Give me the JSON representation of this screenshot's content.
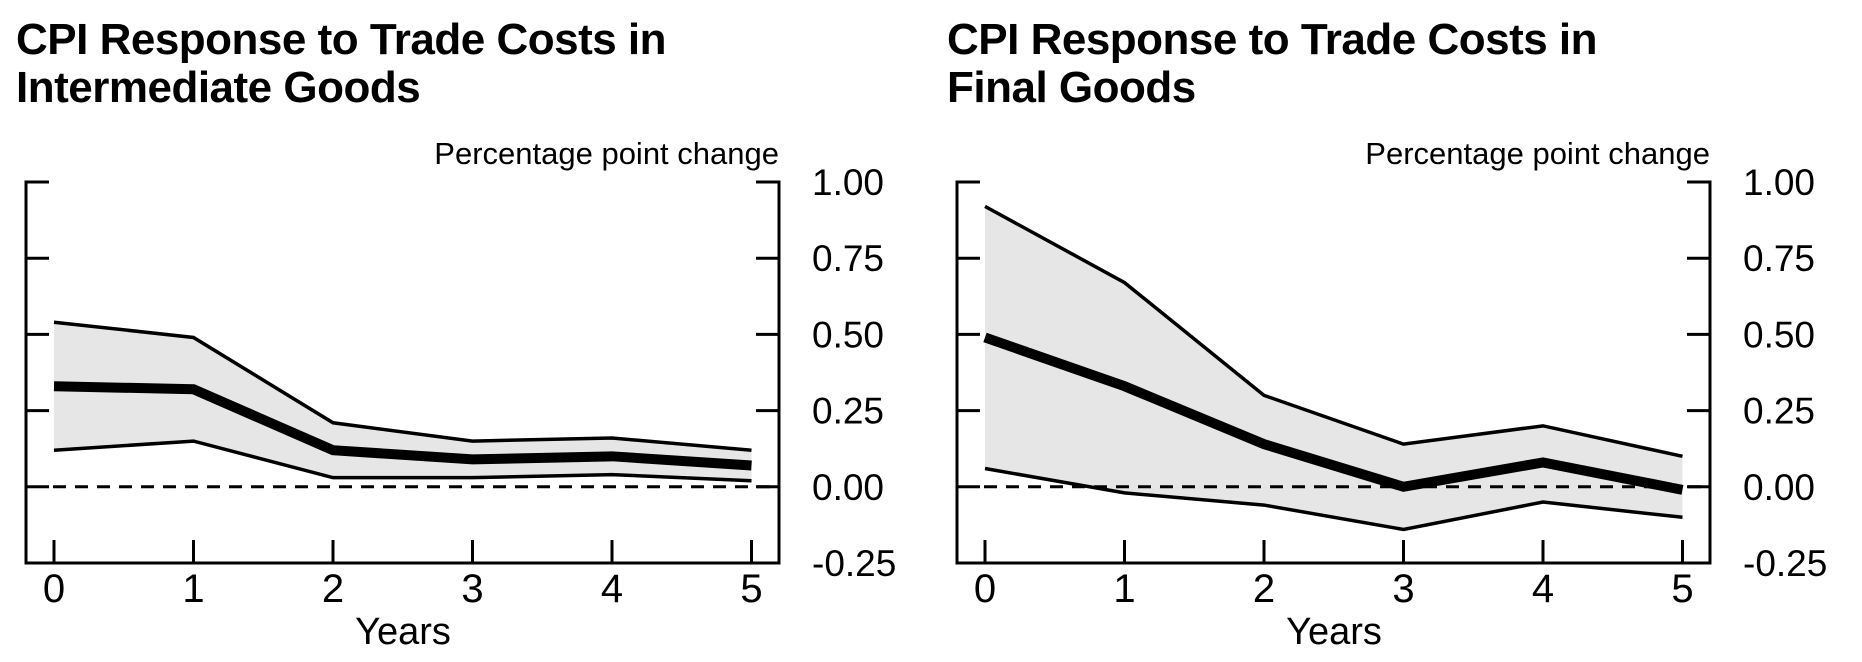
{
  "page": {
    "background": "#ffffff",
    "text_color": "#000000"
  },
  "chart_data": [
    {
      "type": "line",
      "id": "intermediate-goods",
      "title": "CPI Response to Trade Costs in\nIntermediate Goods",
      "unit_label": "Percentage point change",
      "xlabel": "Years",
      "x": [
        0,
        1,
        2,
        3,
        4,
        5
      ],
      "xtick_labels": [
        "0",
        "1",
        "2",
        "3",
        "4",
        "5"
      ],
      "series": [
        {
          "name": "median response",
          "role": "center",
          "values": [
            0.33,
            0.32,
            0.12,
            0.09,
            0.1,
            0.07
          ]
        },
        {
          "name": "upper confidence band",
          "role": "upper",
          "values": [
            0.54,
            0.49,
            0.21,
            0.15,
            0.16,
            0.12
          ]
        },
        {
          "name": "lower confidence band",
          "role": "lower",
          "values": [
            0.12,
            0.15,
            0.03,
            0.03,
            0.04,
            0.02
          ]
        }
      ],
      "ylim": [
        -0.25,
        1.0
      ],
      "ytick_values": [
        1.0,
        0.75,
        0.5,
        0.25,
        0.0,
        -0.25
      ],
      "ytick_labels": [
        "1.00",
        "0.75",
        "0.50",
        "0.25",
        "0.00",
        "-0.25"
      ],
      "zero_line": 0,
      "grid": false,
      "legend": "none",
      "band_fill": "#e6e6e6",
      "line_color": "#000000"
    },
    {
      "type": "line",
      "id": "final-goods",
      "title": "CPI Response to Trade Costs in\nFinal Goods",
      "unit_label": "Percentage point change",
      "xlabel": "Years",
      "x": [
        0,
        1,
        2,
        3,
        4,
        5
      ],
      "xtick_labels": [
        "0",
        "1",
        "2",
        "3",
        "4",
        "5"
      ],
      "series": [
        {
          "name": "median response",
          "role": "center",
          "values": [
            0.49,
            0.33,
            0.14,
            0.0,
            0.08,
            -0.01
          ]
        },
        {
          "name": "upper confidence band",
          "role": "upper",
          "values": [
            0.92,
            0.67,
            0.3,
            0.14,
            0.2,
            0.1
          ]
        },
        {
          "name": "lower confidence band",
          "role": "lower",
          "values": [
            0.06,
            -0.02,
            -0.06,
            -0.14,
            -0.05,
            -0.1
          ]
        }
      ],
      "ylim": [
        -0.25,
        1.0
      ],
      "ytick_values": [
        1.0,
        0.75,
        0.5,
        0.25,
        0.0,
        -0.25
      ],
      "ytick_labels": [
        "1.00",
        "0.75",
        "0.50",
        "0.25",
        "0.00",
        "-0.25"
      ],
      "zero_line": 0,
      "grid": false,
      "legend": "none",
      "band_fill": "#e6e6e6",
      "line_color": "#000000"
    }
  ]
}
